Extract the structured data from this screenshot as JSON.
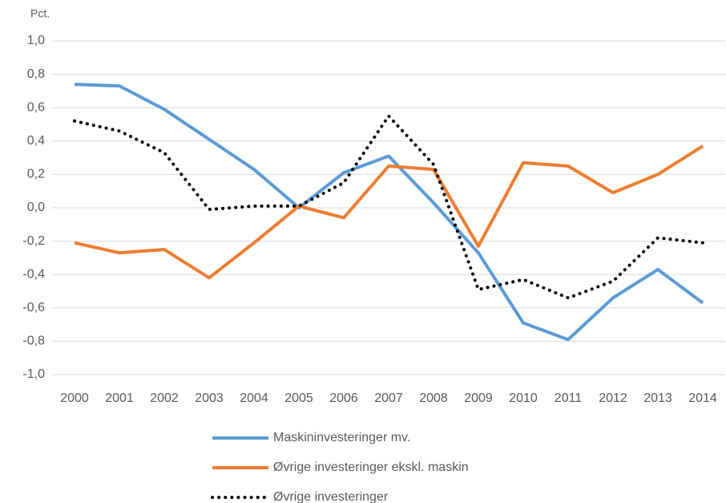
{
  "chart_data": {
    "type": "line",
    "y_label": "Pct.",
    "categories": [
      "2000",
      "2001",
      "2002",
      "2003",
      "2004",
      "2005",
      "2006",
      "2007",
      "2008",
      "2009",
      "2010",
      "2011",
      "2012",
      "2013",
      "2014"
    ],
    "series": [
      {
        "name": "Maskininvesteringer mv.",
        "color": "#5b9bd5",
        "dash": "solid",
        "values": [
          0.74,
          0.73,
          0.59,
          0.41,
          0.23,
          0.0,
          0.21,
          0.31,
          0.03,
          -0.27,
          -0.69,
          -0.79,
          -0.54,
          -0.37,
          -0.57
        ]
      },
      {
        "name": "Øvrige investeringer ekskl. maskin",
        "color": "#ed7d31",
        "dash": "solid",
        "values": [
          -0.21,
          -0.27,
          -0.25,
          -0.42,
          -0.21,
          0.01,
          -0.06,
          0.25,
          0.23,
          -0.23,
          0.27,
          0.25,
          0.09,
          0.2,
          0.37
        ]
      },
      {
        "name": "Øvrige investeringer",
        "color": "#000000",
        "dash": "dotted",
        "values": [
          0.52,
          0.46,
          0.33,
          -0.01,
          0.01,
          0.01,
          0.15,
          0.55,
          0.26,
          -0.49,
          -0.43,
          -0.54,
          -0.44,
          -0.18,
          -0.21
        ]
      }
    ],
    "ylim": [
      -1.0,
      1.0
    ],
    "yticks": [
      {
        "value": -1.0,
        "label": "-1,0"
      },
      {
        "value": -0.8,
        "label": "-0,8"
      },
      {
        "value": -0.6,
        "label": "-0,6"
      },
      {
        "value": -0.4,
        "label": "-0,4"
      },
      {
        "value": -0.2,
        "label": "-0,2"
      },
      {
        "value": 0,
        "label": "0,0"
      },
      {
        "value": 0.2,
        "label": "0,2"
      },
      {
        "value": 0.4,
        "label": "0,4"
      },
      {
        "value": 0.6,
        "label": "0,6"
      },
      {
        "value": 0.8,
        "label": "0,8"
      },
      {
        "value": 1.0,
        "label": "1,0"
      }
    ],
    "grid": true,
    "legend": "bottom"
  }
}
